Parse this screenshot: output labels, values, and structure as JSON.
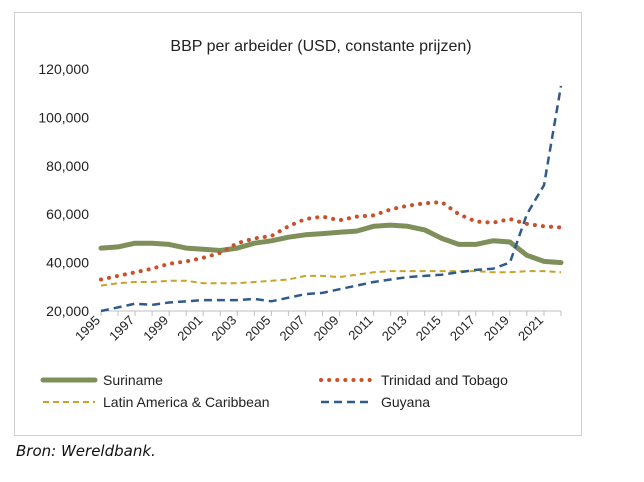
{
  "colors": {
    "suriname": "#7f8f5a",
    "trinidad": "#c9512a",
    "latam": "#c9a227",
    "guyana": "#2f5b8a",
    "axis": "#bfbfbf",
    "text": "#222222"
  },
  "source": "Bron: Wereldbank.",
  "chart_data": {
    "type": "line",
    "title": "BBP per arbeider (USD, constante prijzen)",
    "xlabel": "",
    "ylabel": "",
    "ylim": [
      20000,
      120000
    ],
    "yticks": [
      "20,000",
      "40,000",
      "60,000",
      "80,000",
      "100,000",
      "120,000"
    ],
    "xticks": [
      "1995",
      "1997",
      "1999",
      "2001",
      "2003",
      "2005",
      "2007",
      "2009",
      "2011",
      "2013",
      "2015",
      "2017",
      "2019",
      "2021"
    ],
    "grid": false,
    "legend_position": "bottom",
    "x": [
      1995,
      1996,
      1997,
      1998,
      1999,
      2000,
      2001,
      2002,
      2003,
      2004,
      2005,
      2006,
      2007,
      2008,
      2009,
      2010,
      2011,
      2012,
      2013,
      2014,
      2015,
      2016,
      2017,
      2018,
      2019,
      2020,
      2021,
      2022
    ],
    "series": [
      {
        "name": "Suriname",
        "style": "solid",
        "values": [
          46000,
          46500,
          48000,
          48000,
          47500,
          46000,
          45500,
          45000,
          46000,
          48000,
          49000,
          50500,
          51500,
          52000,
          52500,
          53000,
          55000,
          55500,
          55000,
          53500,
          50000,
          47500,
          47500,
          49000,
          48500,
          43000,
          40500,
          40000
        ]
      },
      {
        "name": "Trinidad and Tobago",
        "style": "dotted",
        "values": [
          33000,
          34500,
          36000,
          37500,
          39500,
          40500,
          42000,
          44000,
          48000,
          50000,
          51000,
          55000,
          58000,
          59000,
          57500,
          59000,
          59500,
          62000,
          63500,
          64500,
          65000,
          60000,
          57000,
          56500,
          58000,
          56000,
          55000,
          54500
        ]
      },
      {
        "name": "Latin America & Caribbean",
        "style": "dashed",
        "values": [
          30500,
          31500,
          32000,
          32000,
          32500,
          32500,
          31500,
          31500,
          31500,
          32000,
          32500,
          33000,
          34500,
          34500,
          34000,
          35000,
          36000,
          36500,
          36500,
          36500,
          36500,
          36500,
          36500,
          36000,
          36000,
          36500,
          36500,
          36000
        ]
      },
      {
        "name": "Guyana",
        "style": "dashed-long",
        "values": [
          20000,
          21500,
          23000,
          22500,
          23500,
          24000,
          24500,
          24500,
          24500,
          25000,
          24000,
          25500,
          27000,
          27500,
          29000,
          30500,
          32000,
          33000,
          34000,
          34500,
          35000,
          36000,
          37000,
          37500,
          40000,
          60000,
          72000,
          113000
        ]
      }
    ]
  }
}
